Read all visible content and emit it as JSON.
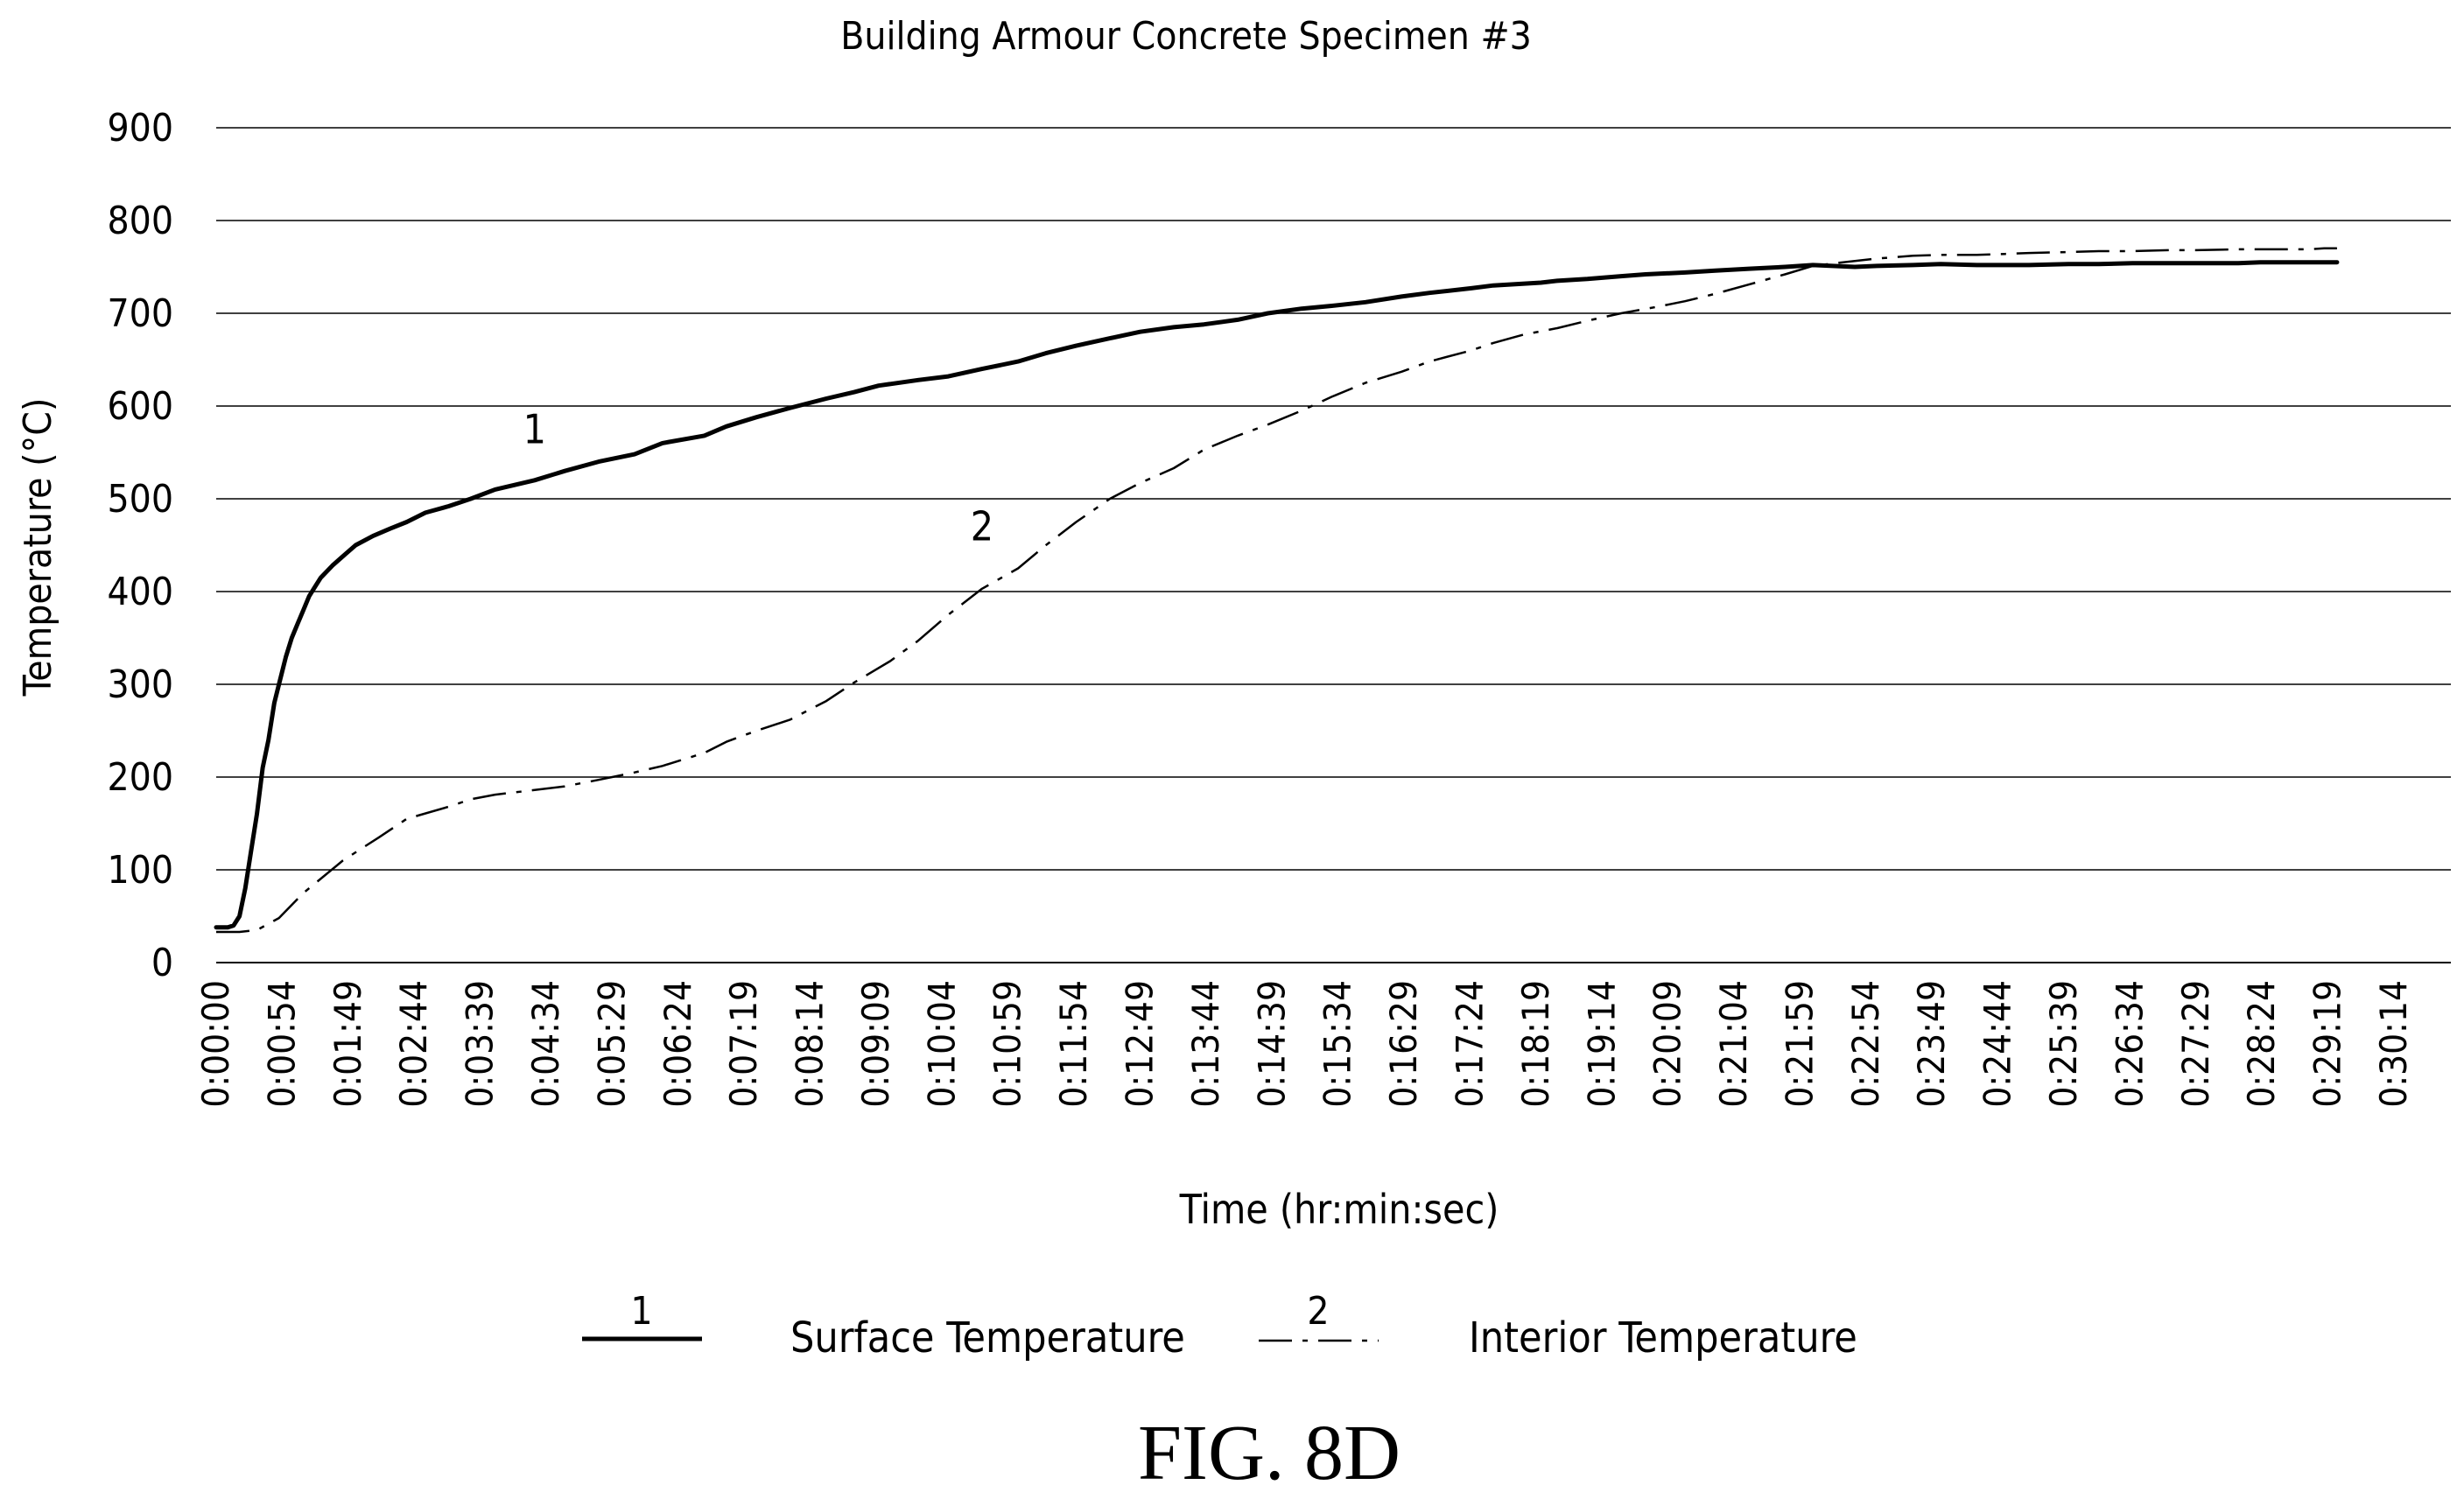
{
  "figure_label": "FIG. 8D",
  "chart_data": {
    "type": "line",
    "title": "Building Armour Concrete Specimen #3",
    "xlabel": "Time (hr:min:sec)",
    "ylabel": "Temperature (°C)",
    "ylim": [
      0,
      900
    ],
    "yticks": [
      0,
      100,
      200,
      300,
      400,
      500,
      600,
      700,
      800,
      900
    ],
    "xlim_seconds": [
      0,
      1874
    ],
    "xtick_labels": [
      "0:00:00",
      "0:00:54",
      "0:01:49",
      "0:02:44",
      "0:03:39",
      "0:04:34",
      "0:05:29",
      "0:06:24",
      "0:07:19",
      "0:08:14",
      "0:09:09",
      "0:10:04",
      "0:10:59",
      "0:11:54",
      "0:12:49",
      "0:13:44",
      "0:14:39",
      "0:15:34",
      "0:16:29",
      "0:17:24",
      "0:18:19",
      "0:19:14",
      "0:20:09",
      "0:21:04",
      "0:21:59",
      "0:22:54",
      "0:23:49",
      "0:24:44",
      "0:25:39",
      "0:26:34",
      "0:27:29",
      "0:28:24",
      "0:29:19",
      "0:30:14"
    ],
    "grid": "horizontal",
    "legend_position": "bottom",
    "series": [
      {
        "name": "Surface Temperature",
        "legend_marker": "1",
        "line_label": "1",
        "style": "solid",
        "color": "#000000",
        "x": [
          "0:00:00",
          "0:00:10",
          "0:00:15",
          "0:00:20",
          "0:00:25",
          "0:00:30",
          "0:00:35",
          "0:00:40",
          "0:00:45",
          "0:00:50",
          "0:00:54",
          "0:01:00",
          "0:01:05",
          "0:01:10",
          "0:01:15",
          "0:01:20",
          "0:01:25",
          "0:01:30",
          "0:01:40",
          "0:01:49",
          "0:02:00",
          "0:02:15",
          "0:02:30",
          "0:02:44",
          "0:03:00",
          "0:03:20",
          "0:03:39",
          "0:04:00",
          "0:04:34",
          "0:05:00",
          "0:05:29",
          "0:06:00",
          "0:06:24",
          "0:07:00",
          "0:07:19",
          "0:07:45",
          "0:08:14",
          "0:08:45",
          "0:09:09",
          "0:09:30",
          "0:10:04",
          "0:10:30",
          "0:10:59",
          "0:11:30",
          "0:11:54",
          "0:12:20",
          "0:12:49",
          "0:13:15",
          "0:13:44",
          "0:14:10",
          "0:14:39",
          "0:15:05",
          "0:15:34",
          "0:16:00",
          "0:16:29",
          "0:17:00",
          "0:17:24",
          "0:18:00",
          "0:18:19",
          "0:19:00",
          "0:19:14",
          "0:19:40",
          "0:20:09",
          "0:20:30",
          "0:21:04",
          "0:21:30",
          "0:21:59",
          "0:22:30",
          "0:22:54",
          "0:23:30",
          "0:23:49",
          "0:24:20",
          "0:24:44",
          "0:25:15",
          "0:25:39",
          "0:26:00",
          "0:26:34",
          "0:27:00",
          "0:27:29",
          "0:28:00",
          "0:28:24",
          "0:29:00",
          "0:29:19",
          "0:30:00",
          "0:30:14",
          "0:30:25"
        ],
        "y": [
          38,
          38,
          40,
          50,
          80,
          120,
          160,
          210,
          240,
          280,
          300,
          330,
          350,
          365,
          380,
          395,
          405,
          415,
          428,
          438,
          450,
          460,
          468,
          475,
          485,
          492,
          500,
          510,
          520,
          530,
          540,
          548,
          560,
          568,
          578,
          588,
          598,
          608,
          615,
          622,
          628,
          632,
          640,
          648,
          657,
          665,
          673,
          680,
          685,
          688,
          693,
          700,
          705,
          708,
          712,
          718,
          722,
          727,
          730,
          733,
          735,
          737,
          740,
          742,
          744,
          746,
          748,
          750,
          752,
          750,
          751,
          752,
          753,
          752,
          752,
          752,
          753,
          753,
          754,
          754,
          754,
          754,
          755,
          755,
          755,
          755
        ],
        "annotations": [
          {
            "x": "0:04:34",
            "y": 560,
            "text": "1"
          }
        ]
      },
      {
        "name": "Interior Temperature",
        "legend_marker": "2",
        "line_label": "2",
        "style": "dash-dot",
        "color": "#000000",
        "x": [
          "0:00:00",
          "0:00:20",
          "0:00:35",
          "0:00:54",
          "0:01:15",
          "0:01:49",
          "0:02:20",
          "0:02:44",
          "0:03:20",
          "0:03:39",
          "0:04:00",
          "0:04:34",
          "0:05:00",
          "0:05:29",
          "0:06:00",
          "0:06:24",
          "0:07:00",
          "0:07:19",
          "0:07:45",
          "0:08:14",
          "0:08:45",
          "0:09:09",
          "0:09:40",
          "0:10:04",
          "0:10:30",
          "0:10:59",
          "0:11:30",
          "0:11:54",
          "0:12:20",
          "0:12:49",
          "0:13:15",
          "0:13:44",
          "0:14:10",
          "0:14:39",
          "0:15:05",
          "0:15:34",
          "0:16:00",
          "0:16:29",
          "0:17:00",
          "0:17:24",
          "0:18:00",
          "0:18:19",
          "0:18:45",
          "0:19:14",
          "0:19:40",
          "0:20:09",
          "0:20:40",
          "0:21:04",
          "0:21:30",
          "0:21:59",
          "0:22:30",
          "0:22:54",
          "0:23:20",
          "0:23:49",
          "0:24:20",
          "0:24:44",
          "0:25:15",
          "0:25:39",
          "0:26:00",
          "0:26:34",
          "0:27:00",
          "0:27:29",
          "0:28:00",
          "0:28:24",
          "0:29:00",
          "0:29:19",
          "0:30:00",
          "0:30:14",
          "0:30:25"
        ],
        "y": [
          33,
          33,
          35,
          48,
          75,
          110,
          135,
          155,
          168,
          176,
          181,
          186,
          190,
          197,
          205,
          212,
          226,
          238,
          250,
          262,
          282,
          302,
          325,
          347,
          375,
          403,
          425,
          450,
          475,
          500,
          517,
          533,
          553,
          568,
          580,
          595,
          610,
          625,
          637,
          648,
          660,
          668,
          677,
          684,
          692,
          700,
          707,
          713,
          721,
          731,
          742,
          751,
          755,
          759,
          762,
          763,
          763,
          764,
          765,
          766,
          767,
          767,
          768,
          768,
          769,
          769,
          769,
          770,
          770
        ],
        "annotations": [
          {
            "x": "0:10:59",
            "y": 455,
            "text": "2"
          }
        ]
      }
    ]
  }
}
